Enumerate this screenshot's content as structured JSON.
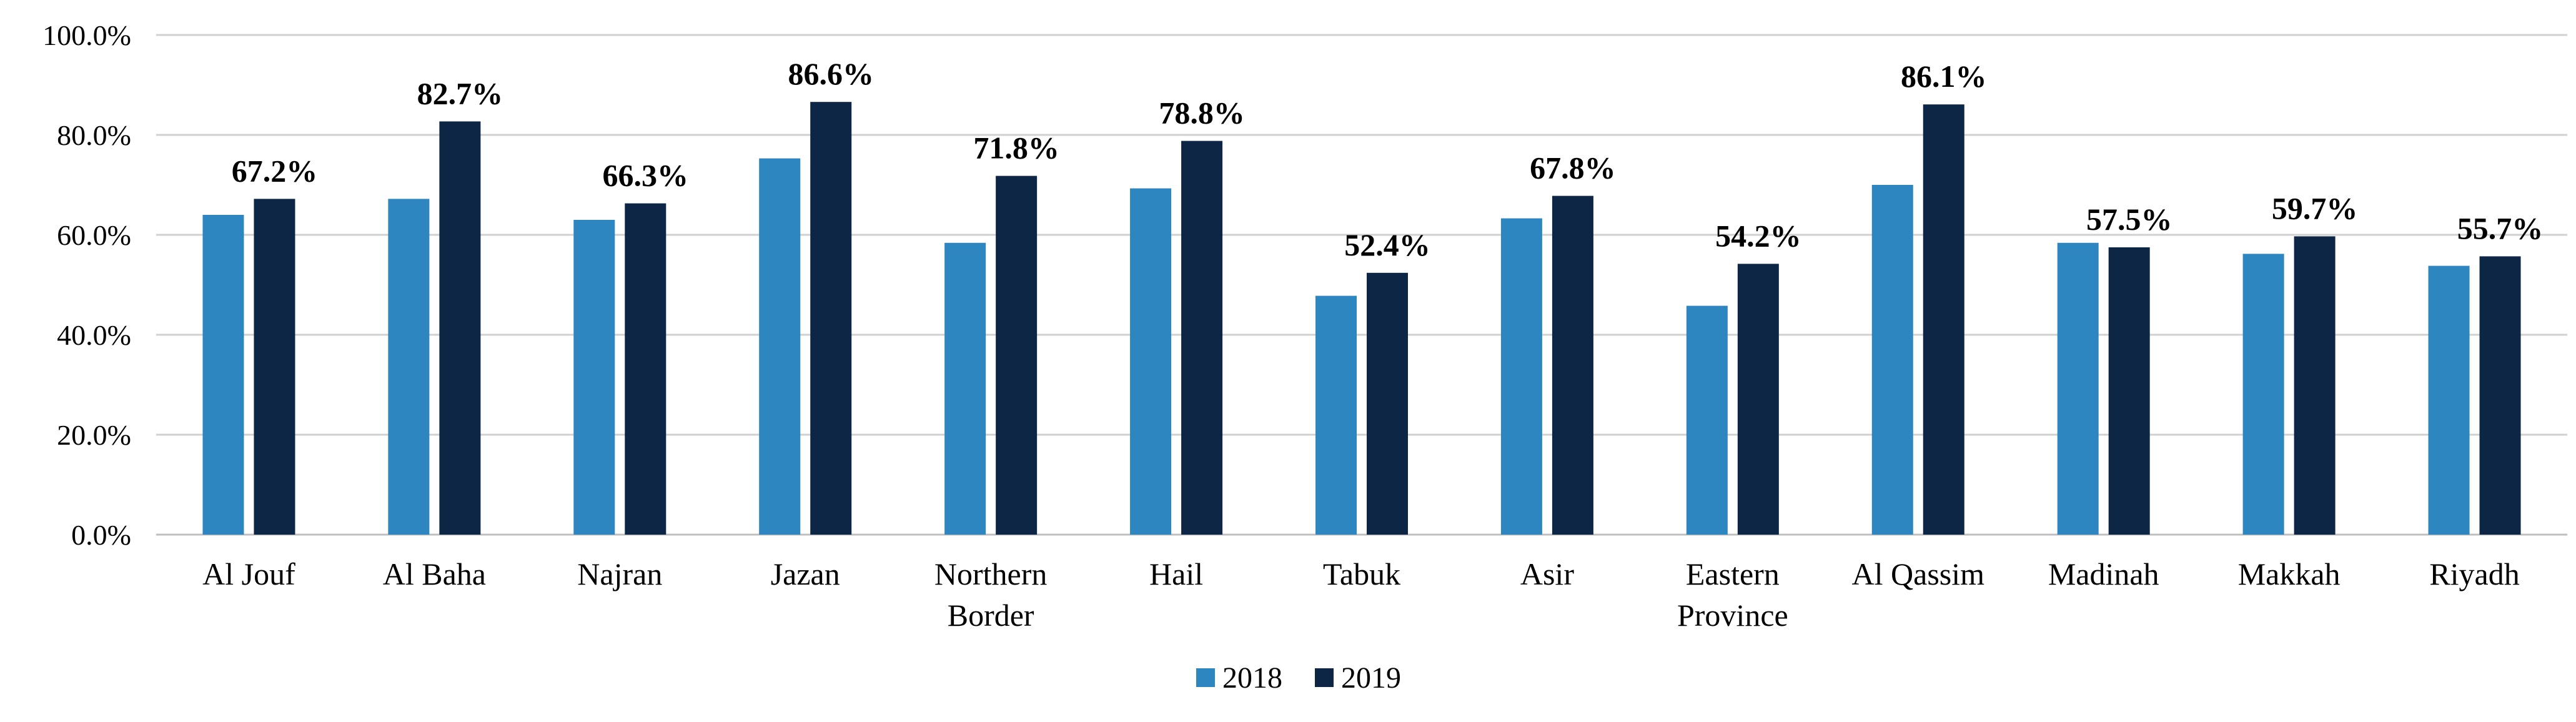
{
  "chart_data": {
    "type": "bar",
    "title": "",
    "xlabel": "",
    "ylabel": "",
    "ylim": [
      0,
      100
    ],
    "y_ticks": [
      0,
      20,
      40,
      60,
      80,
      100
    ],
    "y_tick_labels": [
      "0.0%",
      "20.0%",
      "40.0%",
      "60.0%",
      "80.0%",
      "100.0%"
    ],
    "grid": true,
    "legend_position": "bottom-center",
    "categories": [
      [
        "Al Jouf"
      ],
      [
        "Al Baha"
      ],
      [
        "Najran"
      ],
      [
        "Jazan"
      ],
      [
        "Northern",
        "Border"
      ],
      [
        "Hail"
      ],
      [
        "Tabuk"
      ],
      [
        "Asir"
      ],
      [
        "Eastern",
        "Province"
      ],
      [
        "Al Qassim"
      ],
      [
        "Madinah"
      ],
      [
        "Makkah"
      ],
      [
        "Riyadh"
      ]
    ],
    "series": [
      {
        "name": "2018",
        "color": "#2e86c1",
        "values": [
          64.0,
          67.2,
          63.0,
          75.3,
          58.4,
          69.3,
          47.8,
          63.3,
          45.8,
          70.0,
          58.4,
          56.2,
          53.8
        ],
        "show_labels": false
      },
      {
        "name": "2019",
        "color": "#0d2645",
        "values": [
          67.2,
          82.7,
          66.3,
          86.6,
          71.8,
          78.8,
          52.4,
          67.8,
          54.2,
          86.1,
          57.5,
          59.7,
          55.7
        ],
        "labels": [
          "67.2%",
          "82.7%",
          "66.3%",
          "86.6%",
          "71.8%",
          "78.8%",
          "52.4%",
          "67.8%",
          "54.2%",
          "86.1%",
          "57.5%",
          "59.7%",
          "55.7%"
        ],
        "show_labels": true
      }
    ]
  }
}
